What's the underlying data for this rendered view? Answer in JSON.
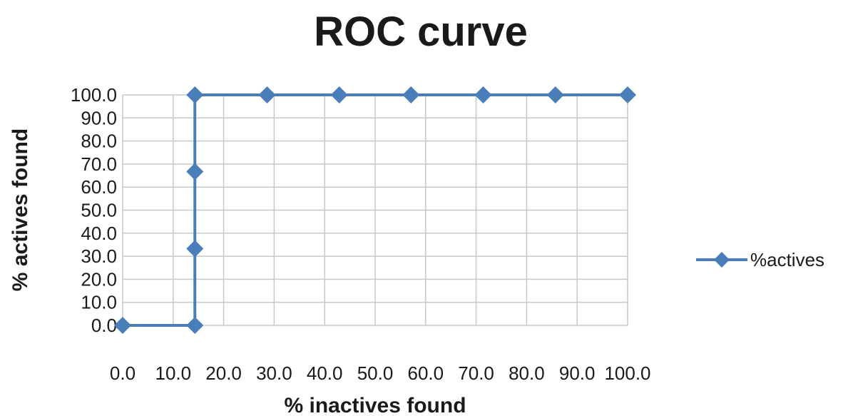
{
  "chart_data": {
    "type": "line",
    "title": "ROC curve",
    "xlabel": "% inactives found",
    "ylabel": "% actives found",
    "xlim": [
      0,
      100
    ],
    "ylim": [
      0,
      100
    ],
    "x_ticks": [
      "0.0",
      "10.0",
      "20.0",
      "30.0",
      "40.0",
      "50.0",
      "60.0",
      "70.0",
      "80.0",
      "90.0",
      "100.0"
    ],
    "y_ticks": [
      "0.0",
      "10.0",
      "20.0",
      "30.0",
      "40.0",
      "50.0",
      "60.0",
      "70.0",
      "80.0",
      "90.0",
      "100.0"
    ],
    "grid": true,
    "legend_position": "right",
    "series": [
      {
        "name": "%actives",
        "color": "#4a7ebb",
        "marker": "diamond",
        "x": [
          0.0,
          14.3,
          14.3,
          14.3,
          14.3,
          28.6,
          42.9,
          57.1,
          71.4,
          85.7,
          100.0
        ],
        "y": [
          0.0,
          0.0,
          33.3,
          66.7,
          100.0,
          100.0,
          100.0,
          100.0,
          100.0,
          100.0,
          100.0
        ]
      }
    ]
  }
}
